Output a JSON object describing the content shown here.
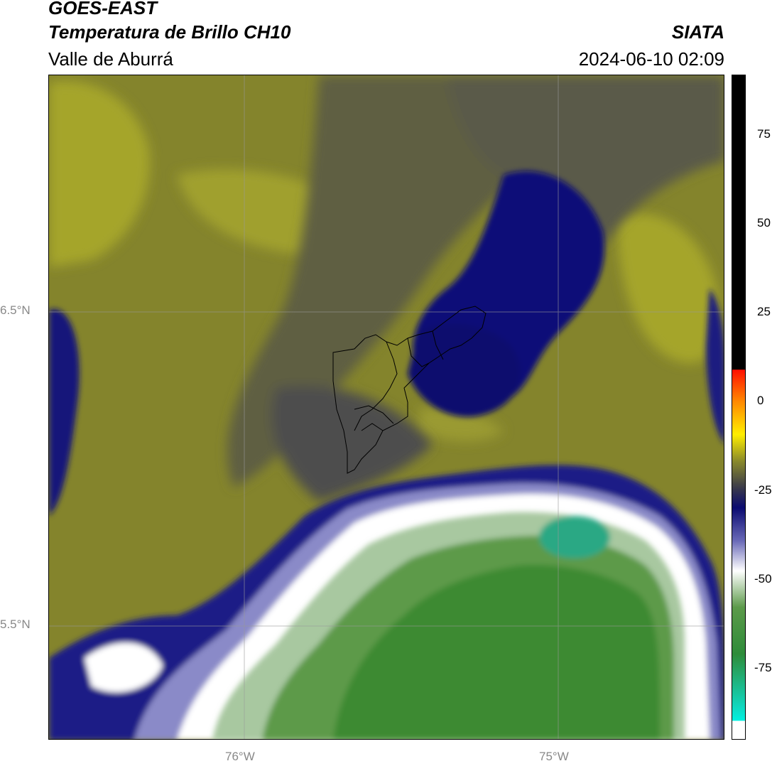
{
  "header": {
    "line1": "GOES-EAST",
    "line2": "Temperatura de Brillo CH10",
    "line3": "Valle de Aburrá",
    "org": "SIATA",
    "datetime": "2024-06-10 02:09"
  },
  "axes": {
    "lat_labels": [
      "6.5°N",
      "5.5°N"
    ],
    "lon_labels": [
      "76°W",
      "75°W"
    ]
  },
  "colorbar": {
    "ticks": [
      "75",
      "50",
      "25",
      "0",
      "-25",
      "-50",
      "-75"
    ],
    "tick_values": [
      75,
      50,
      25,
      0,
      -25,
      -50,
      -75
    ],
    "range": [
      -95,
      92
    ]
  },
  "colors": {
    "olive": "#8a8a2a",
    "navy": "#0c0c7a",
    "green": "#3c8a2e",
    "white": "#ffffff",
    "black": "#000000",
    "cyan": "#00e6d2"
  }
}
